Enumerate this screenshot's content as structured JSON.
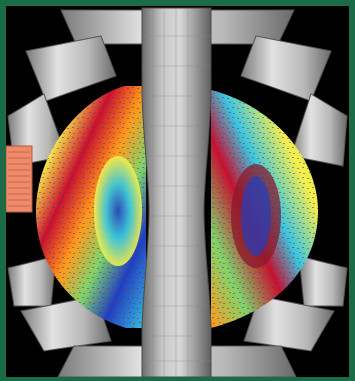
{
  "image": {
    "subject": "tokamak-turbulence-visualization",
    "colors": {
      "frame": "#1c6b47",
      "background": "#000000",
      "coil_light": "#dcdcdc",
      "coil_mid": "#a9a9a9",
      "coil_dark": "#6e6e6e",
      "antenna": "#f08a6a",
      "plasma_red": "#c8102e",
      "plasma_orange": "#ff9a1a",
      "plasma_yellow": "#f6f04a",
      "plasma_green": "#7fd46a",
      "plasma_cyan": "#39c6e0",
      "plasma_blue": "#1f3fc0"
    }
  }
}
